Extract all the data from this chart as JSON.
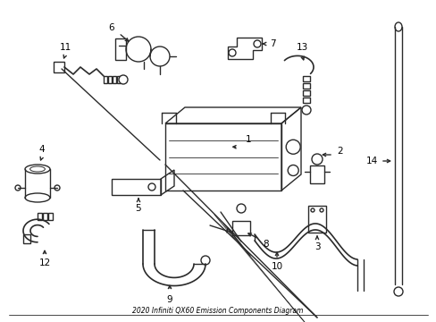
{
  "title": "2020 Infiniti QX60 Emission Components Diagram",
  "bg_color": "#ffffff",
  "line_color": "#2a2a2a",
  "lw": 1.0,
  "fs": 7.5
}
